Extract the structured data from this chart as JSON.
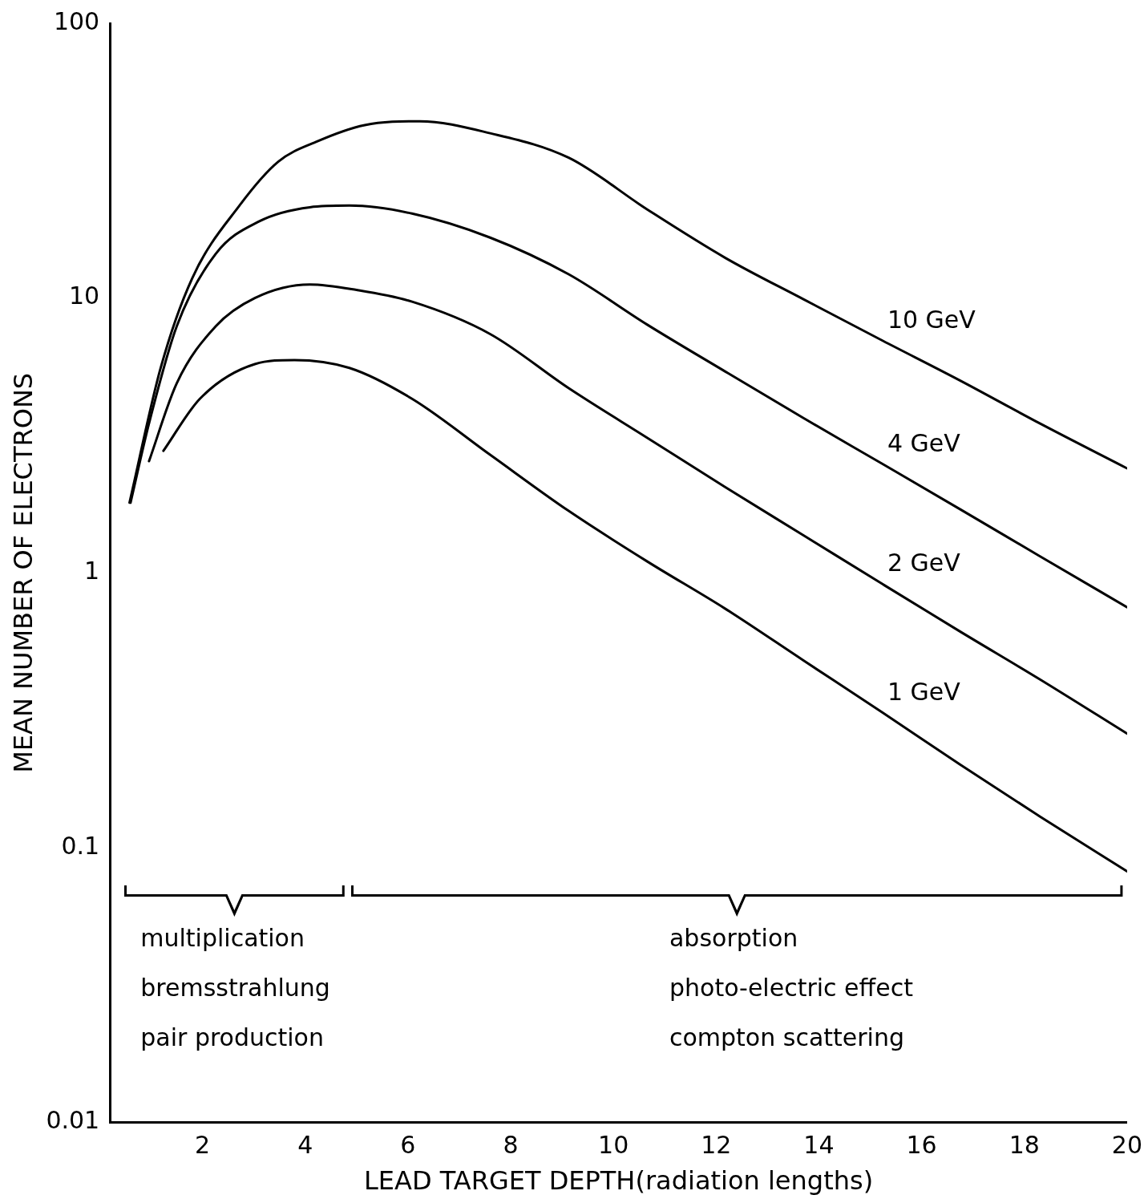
{
  "chart_data": {
    "type": "line",
    "xlabel": "LEAD TARGET DEPTH(radiation lengths)",
    "ylabel": "MEAN NUMBER OF ELECTRONS",
    "log": "y",
    "xlim": [
      0.2,
      20
    ],
    "xticks": [
      2,
      4,
      6,
      8,
      10,
      12,
      14,
      16,
      18,
      20
    ],
    "ylim": [
      0.01,
      100
    ],
    "yticks": [
      0.01,
      0.1,
      1,
      10,
      100
    ],
    "grid": false,
    "legend": false,
    "marker": "none",
    "line_style": "solid",
    "series": [
      {
        "name": "10 GeV",
        "color": "#000000",
        "x": [
          0.58,
          1.19,
          1.8,
          2.72,
          3.48,
          4.24,
          5.16,
          6.23,
          7.6,
          9.13,
          10.66,
          12.18,
          13.7,
          15.24,
          16.76,
          18.3,
          20
        ],
        "values": [
          1.8,
          5.6,
          11.8,
          21.7,
          31.4,
          37.2,
          42.6,
          44,
          39.8,
          32.4,
          21,
          14,
          9.9,
          7,
          5,
          3.5,
          2.4
        ]
      },
      {
        "name": "4 GeV",
        "color": "#000000",
        "x": [
          0.6,
          0.96,
          1.5,
          2.26,
          3.1,
          4.09,
          4.86,
          6.08,
          7.6,
          9.13,
          10.66,
          12.18,
          13.7,
          15.24,
          16.76,
          18.3,
          20
        ],
        "values": [
          1.8,
          3.5,
          7.9,
          14.5,
          19,
          21.4,
          21.7,
          20.3,
          16.6,
          12.2,
          8,
          5.4,
          3.66,
          2.49,
          1.7,
          1.15,
          0.75
        ]
      },
      {
        "name": "2 GeV",
        "color": "#000000",
        "x": [
          0.96,
          1.5,
          2.26,
          3.02,
          4.09,
          5.0,
          6.08,
          7.6,
          9.13,
          10.66,
          12.18,
          13.7,
          15.24,
          16.76,
          18.3,
          20
        ],
        "values": [
          2.55,
          4.9,
          7.9,
          10,
          11.2,
          10.7,
          9.7,
          7.4,
          4.7,
          3.1,
          2.05,
          1.37,
          0.91,
          0.61,
          0.41,
          0.26
        ]
      },
      {
        "name": "1 GeV",
        "color": "#000000",
        "x": [
          1.24,
          1.95,
          3.02,
          3.79,
          4.86,
          6.08,
          7.6,
          9.13,
          10.66,
          12.18,
          13.7,
          15.24,
          16.76,
          18.3,
          20
        ],
        "values": [
          2.78,
          4.3,
          5.75,
          5.95,
          5.57,
          4.3,
          2.69,
          1.68,
          1.1,
          0.74,
          0.48,
          0.31,
          0.2,
          0.13,
          0.082
        ]
      }
    ],
    "annotations": [
      "multiplication",
      "bremsstrahlung",
      "pair production",
      "absorption",
      "photo-electric effect",
      "compton scattering"
    ]
  }
}
